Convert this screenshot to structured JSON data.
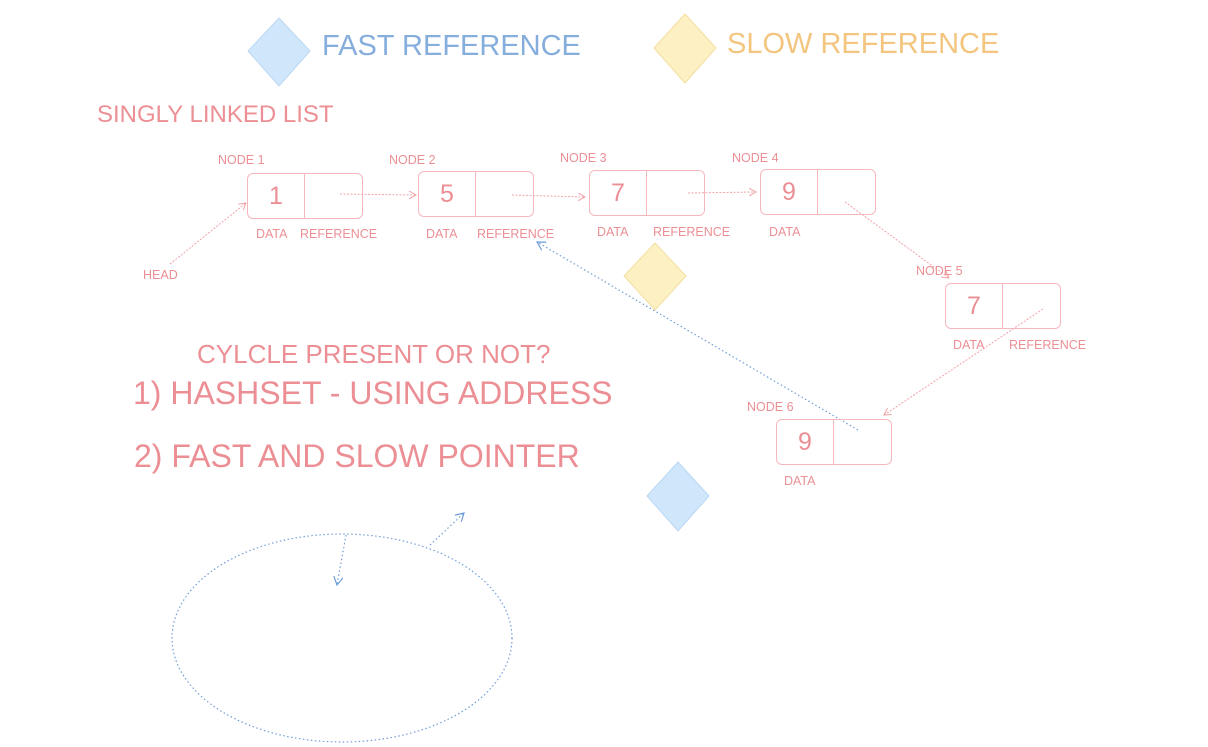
{
  "legend": {
    "fast_label": "FAST REFERENCE",
    "slow_label": "SLOW REFERENCE",
    "fast_color": "#cfe6fb",
    "slow_color": "#fdf0c2"
  },
  "title": "SINGLY LINKED LIST",
  "head_label": "HEAD",
  "nodes": [
    {
      "name": "NODE 1",
      "value": "1",
      "data_label": "DATA",
      "ref_label": "REFERENCE"
    },
    {
      "name": "NODE 2",
      "value": "5",
      "data_label": "DATA",
      "ref_label": "REFERENCE"
    },
    {
      "name": "NODE 3",
      "value": "7",
      "data_label": "DATA",
      "ref_label": "REFERENCE"
    },
    {
      "name": "NODE 4",
      "value": "9",
      "data_label": "DATA",
      "ref_label": ""
    },
    {
      "name": "NODE 5",
      "value": "7",
      "data_label": "DATA",
      "ref_label": "REFERENCE"
    },
    {
      "name": "NODE 6",
      "value": "9",
      "data_label": "DATA",
      "ref_label": ""
    }
  ],
  "question": "CYLCLE PRESENT OR NOT?",
  "methods": [
    "1) HASHSET - USING ADDRESS",
    "2) FAST AND SLOW POINTER"
  ]
}
